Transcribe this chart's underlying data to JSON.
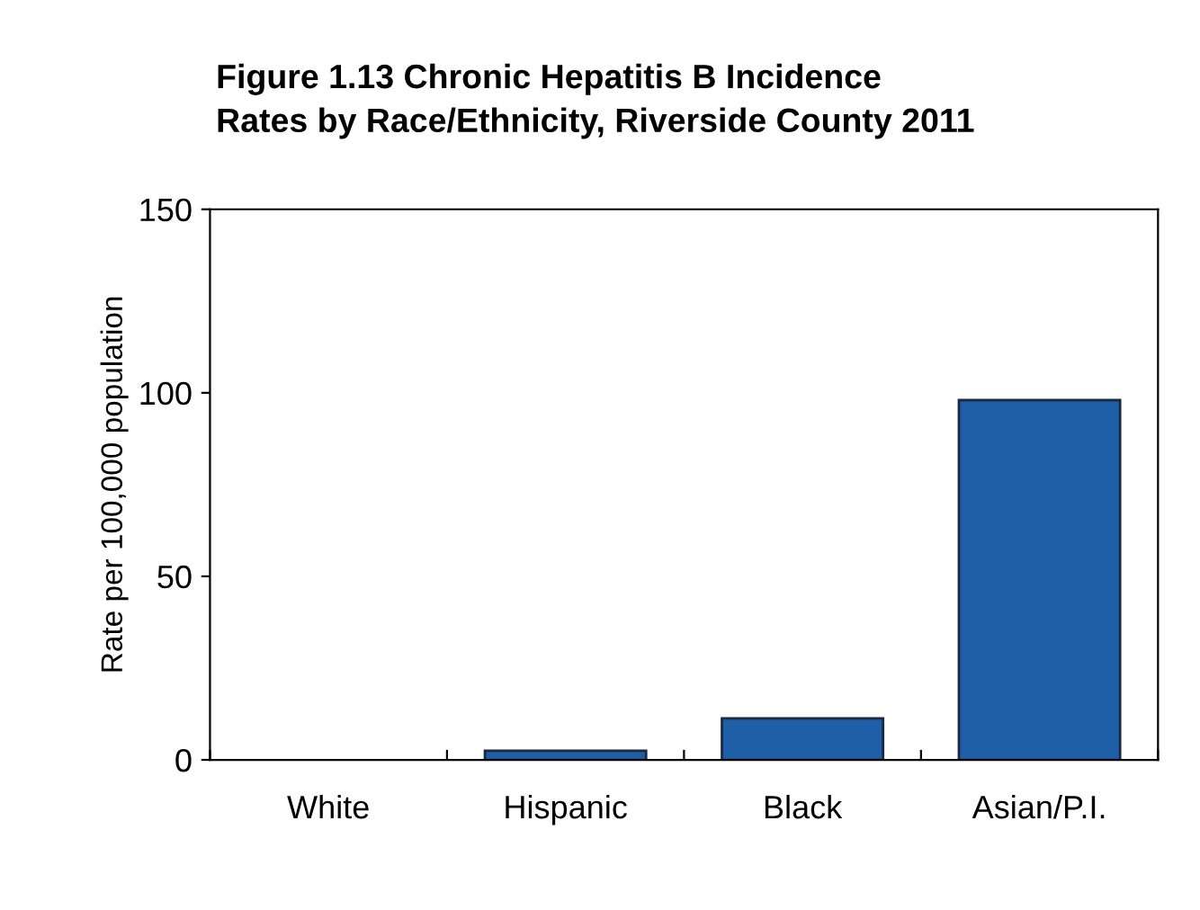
{
  "chart_data": {
    "type": "bar",
    "title": "Figure 1.13 Chronic Hepatitis B Incidence\nRates by Race/Ethnicity, Riverside County 2011",
    "ylabel": "Rate per 100,000 population",
    "categories": [
      "White",
      "Hispanic",
      "Black",
      "Asian/P.I."
    ],
    "values": [
      0,
      2.5,
      11.3,
      98
    ],
    "color": "#1f5fa8",
    "ylim": [
      0,
      150
    ],
    "yticks": [
      0,
      50,
      100,
      150
    ],
    "grid": false,
    "legend": false
  }
}
